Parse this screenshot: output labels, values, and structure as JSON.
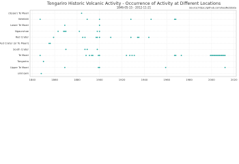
{
  "chart_data": {
    "type": "strip",
    "title": "Tongariro Historic Volcanic Activity - Occurrence of Activity at Different Locations",
    "subtitle": "1846-05-15 - 2012-11-21",
    "source": "Source:https://github.com/GeoNet/data",
    "color": "#1aa39a",
    "grid": true,
    "xlim": [
      1838,
      2022
    ],
    "xticks": [
      1840,
      1860,
      1880,
      1900,
      1920,
      1940,
      1960,
      1980,
      2000,
      2020
    ],
    "rows": [
      {
        "name": "(Upper) Te Maari",
        "x": [
          1884
        ]
      },
      {
        "name": "Ketetahi",
        "x": [
          1847,
          1889,
          1900,
          1928,
          1946,
          1967,
          1968
        ]
      },
      {
        "name": "Lower Te Maari",
        "x": [
          1869,
          1900
        ]
      },
      {
        "name": "Ngauruhoe",
        "x": [
          1863,
          1868,
          1869,
          1870,
          1882,
          1898,
          1900
        ]
      },
      {
        "name": "Red Crater",
        "x": [
          1859,
          1885,
          1887,
          1897,
          1898,
          1900,
          1910,
          1928,
          1934,
          1935,
          1944
        ]
      },
      {
        "name": "Red Crater (or Te Maari)",
        "x": [
          1855,
          1856
        ]
      },
      {
        "name": "South Crater",
        "x": [
          1870,
          1887,
          1889,
          1898
        ]
      },
      {
        "name": "Te Maari",
        "x": [
          1847,
          1888,
          1891,
          1893,
          1894,
          1899,
          1900,
          1924,
          1927,
          1929,
          1931,
          1967,
          1968,
          1973,
          1999,
          2000,
          2001,
          2002,
          2003,
          2004,
          2005,
          2006,
          2007,
          2008,
          2009,
          2010,
          2011,
          2012
        ]
      },
      {
        "name": "Tongariro",
        "x": [
          1850
        ]
      },
      {
        "name": "Upper Te Maari",
        "x": [
          1869,
          1899,
          1900,
          1959,
          2012
        ]
      },
      {
        "name": "unknown",
        "x": [
          1848
        ]
      }
    ]
  }
}
